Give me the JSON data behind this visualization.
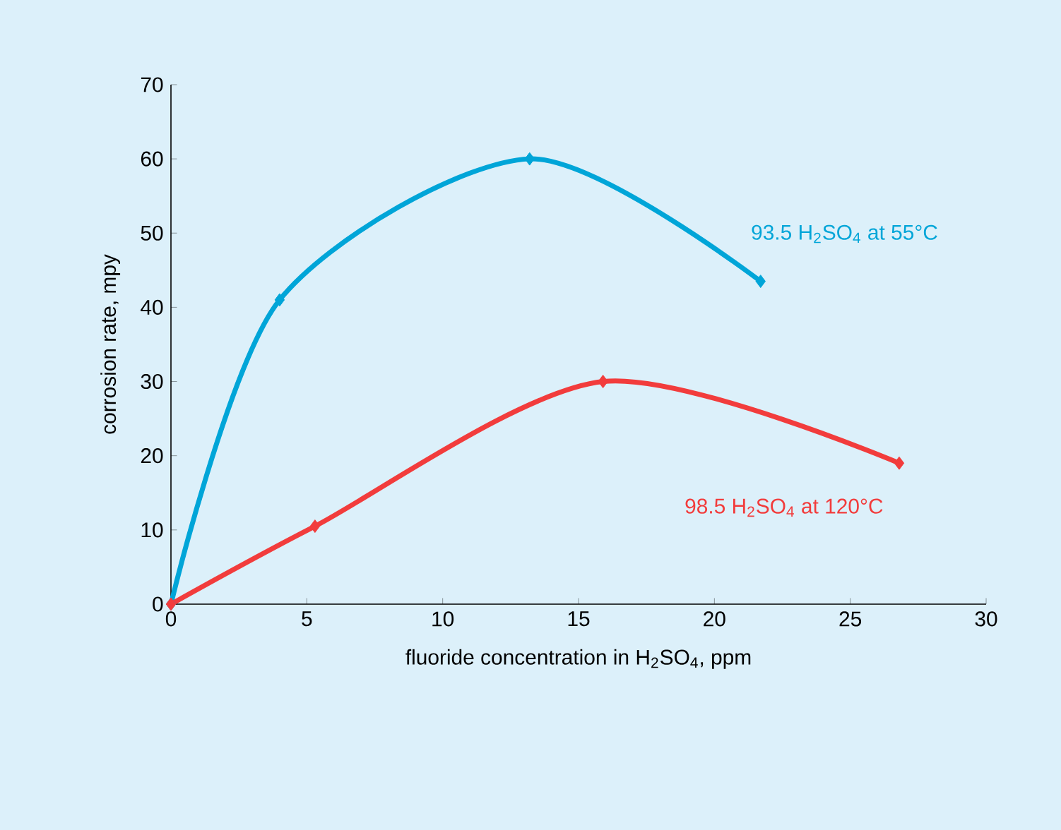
{
  "chart_data": {
    "type": "line",
    "xlabel": "fluoride concentration in H$_{2}$SO$_{4}$, ppm",
    "ylabel": "corrosion rate, mpy",
    "xlim": [
      0,
      30
    ],
    "xticks": [
      0,
      5,
      10,
      15,
      20,
      25,
      30
    ],
    "ylim": [
      0,
      70
    ],
    "yticks": [
      0,
      10,
      20,
      30,
      40,
      50,
      60,
      70
    ],
    "marker": "diamond",
    "grid": false,
    "series": [
      {
        "name": "93.5 H$_{2}$SO$_{4}$ at 55°C",
        "color": "#00a5d8",
        "x": [
          0,
          4,
          13.2,
          21.7
        ],
        "values": [
          0,
          41,
          60,
          43.5
        ]
      },
      {
        "name": "98.5 H$_{2}$SO$_{4}$ at 120°C",
        "color": "#f23c3c",
        "x": [
          0,
          5.3,
          15.9,
          26.8
        ],
        "values": [
          0,
          10.5,
          30,
          19
        ]
      }
    ]
  }
}
